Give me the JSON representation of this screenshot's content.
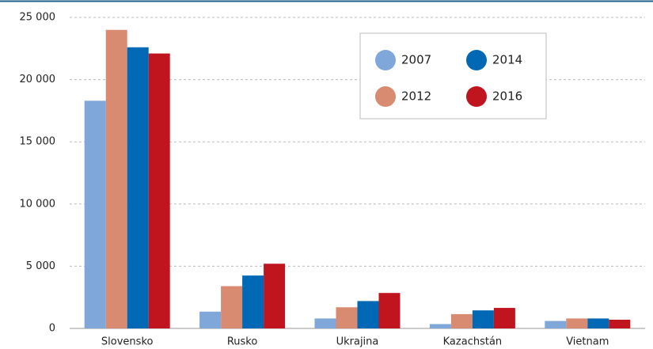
{
  "chart_data": {
    "type": "bar",
    "categories": [
      "Slovensko",
      "Rusko",
      "Ukrajina",
      "Kazachstán",
      "Vietnam"
    ],
    "series": [
      {
        "name": "2007",
        "color": "#7fa7d9",
        "values": [
          18300,
          1350,
          800,
          350,
          600
        ]
      },
      {
        "name": "2012",
        "color": "#d98b72",
        "values": [
          24000,
          3400,
          1700,
          1150,
          800
        ]
      },
      {
        "name": "2014",
        "color": "#0068b4",
        "values": [
          22600,
          4250,
          2200,
          1450,
          800
        ]
      },
      {
        "name": "2016",
        "color": "#c0141f",
        "values": [
          22100,
          5200,
          2850,
          1650,
          700
        ]
      }
    ],
    "ylim": [
      0,
      25000
    ],
    "yticks": [
      0,
      {
        "value": 5000,
        "label": "5 000"
      },
      {
        "value": 10000,
        "label": "10 000"
      },
      {
        "value": 15000,
        "label": "15 000"
      },
      {
        "value": 20000,
        "label": "20 000"
      },
      {
        "value": 25000,
        "label": "25 000"
      }
    ],
    "grid": true,
    "legend_position": "top-right"
  }
}
